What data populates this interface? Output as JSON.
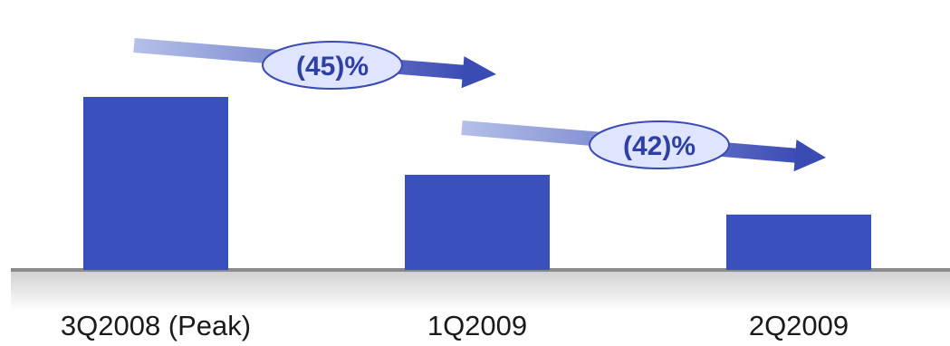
{
  "colors": {
    "bar": "#3a50bd",
    "arrow_light": "#b4c0e8",
    "arrow_dark": "#3b4bb4",
    "badge_fill": "#dfe5ff",
    "badge_stroke": "#3b4bb4",
    "floor_top": "#8a8a8a",
    "floor_fill": "#e3e3e3"
  },
  "chart_data": {
    "type": "bar",
    "categories": [
      "3Q2008 (Peak)",
      "1Q2009",
      "2Q2009"
    ],
    "values": [
      100,
      55,
      32
    ],
    "ylim": [
      0,
      100
    ],
    "grid": false,
    "annotations": [
      {
        "from": "3Q2008 (Peak)",
        "to": "1Q2009",
        "label": "(45)%"
      },
      {
        "from": "1Q2009",
        "to": "2Q2009",
        "label": "(42)%"
      }
    ]
  }
}
